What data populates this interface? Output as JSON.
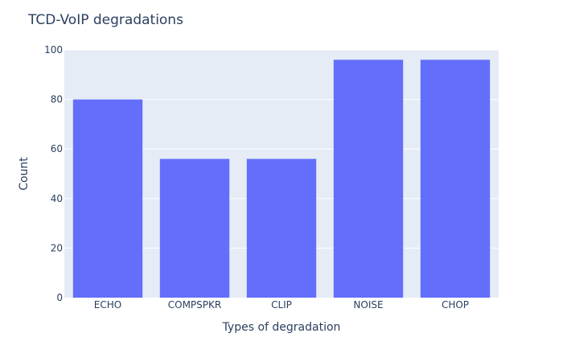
{
  "chart_data": {
    "type": "bar",
    "title": "TCD-VoIP degradations",
    "xlabel": "Types of degradation",
    "ylabel": "Count",
    "categories": [
      "ECHO",
      "COMPSPKR",
      "CLIP",
      "NOISE",
      "CHOP"
    ],
    "values": [
      80,
      56,
      56,
      96,
      96
    ],
    "ylim": [
      0,
      100
    ],
    "yticks": [
      0,
      20,
      40,
      60,
      80,
      100
    ],
    "grid": true,
    "legend": "none",
    "colors": {
      "bar": "#636efa",
      "plot_background": "#e5ecf6",
      "gridline": "#ffffff",
      "text": "#2a3f5f"
    }
  }
}
